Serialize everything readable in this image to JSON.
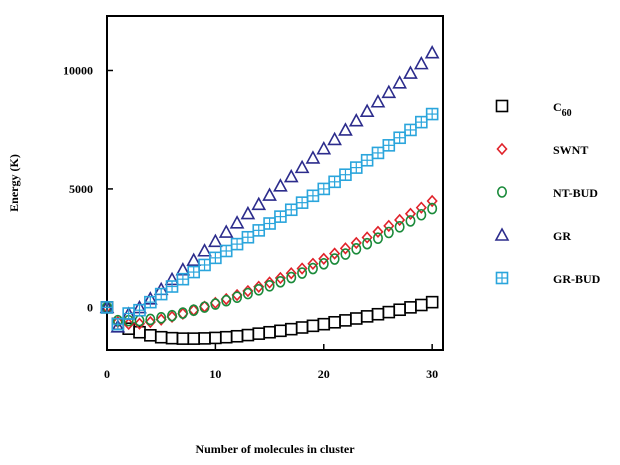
{
  "chart_data": {
    "type": "scatter",
    "title": "",
    "xlabel": "Number of molecules in cluster",
    "ylabel": "Energy (K)",
    "xlim": [
      0,
      31
    ],
    "ylim": [
      -1800,
      12300
    ],
    "xticks": [
      0,
      10,
      20,
      30
    ],
    "yticks": [
      0,
      5000,
      10000
    ],
    "grid": false,
    "legend_position": "right",
    "x": [
      0,
      1,
      2,
      3,
      4,
      5,
      6,
      7,
      8,
      9,
      10,
      11,
      12,
      13,
      14,
      15,
      16,
      17,
      18,
      19,
      20,
      21,
      22,
      23,
      24,
      25,
      26,
      27,
      28,
      29,
      30
    ],
    "series": [
      {
        "name": "C60",
        "name_main": "C",
        "name_sub": "60",
        "marker": "square",
        "color": "#000000",
        "values": [
          0,
          -700,
          -900,
          -1050,
          -1180,
          -1260,
          -1300,
          -1320,
          -1320,
          -1310,
          -1290,
          -1260,
          -1220,
          -1170,
          -1110,
          -1050,
          -990,
          -920,
          -850,
          -780,
          -710,
          -630,
          -550,
          -470,
          -380,
          -290,
          -200,
          -100,
          0,
          100,
          220
        ]
      },
      {
        "name": "SWNT",
        "marker": "diamond",
        "color": "#e0222a",
        "values": [
          0,
          -620,
          -700,
          -690,
          -620,
          -520,
          -400,
          -270,
          -120,
          30,
          190,
          350,
          520,
          690,
          870,
          1050,
          1240,
          1440,
          1640,
          1840,
          2050,
          2270,
          2490,
          2720,
          2950,
          3190,
          3440,
          3690,
          3950,
          4210,
          4490
        ]
      },
      {
        "name": "NT-BUD",
        "marker": "circle",
        "color": "#1a8a3a",
        "values": [
          0,
          -560,
          -560,
          -560,
          -510,
          -440,
          -350,
          -240,
          -120,
          10,
          140,
          280,
          430,
          580,
          740,
          910,
          1080,
          1260,
          1450,
          1640,
          1840,
          2040,
          2250,
          2470,
          2690,
          2920,
          3160,
          3400,
          3650,
          3910,
          4170
        ]
      },
      {
        "name": "GR",
        "marker": "triangle",
        "color": "#2c2c8c",
        "values": [
          0,
          -820,
          -280,
          -10,
          360,
          760,
          1180,
          1590,
          1990,
          2390,
          2790,
          3180,
          3570,
          3960,
          4350,
          4740,
          5130,
          5520,
          5910,
          6310,
          6700,
          7090,
          7490,
          7880,
          8280,
          8680,
          9080,
          9480,
          9890,
          10290,
          10750
        ]
      },
      {
        "name": "GR-BUD",
        "marker": "square-cross",
        "color": "#2aa5dc",
        "values": [
          0,
          -710,
          -260,
          -120,
          220,
          560,
          880,
          1190,
          1490,
          1790,
          2090,
          2380,
          2670,
          2960,
          3250,
          3540,
          3830,
          4120,
          4420,
          4710,
          5000,
          5300,
          5600,
          5900,
          6210,
          6520,
          6840,
          7160,
          7490,
          7820,
          8160
        ]
      }
    ]
  }
}
